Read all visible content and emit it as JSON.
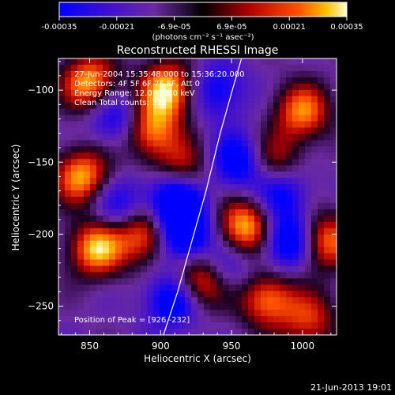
{
  "colorbar": {
    "ticks": [
      "-0.00035",
      "-0.00021",
      "-6.9e-05",
      "6.9e-05",
      "0.00021",
      "0.00035"
    ],
    "unit_label": "(photons cm⁻² s⁻¹ asec⁻²)",
    "range": [
      -0.00035,
      0.00035
    ]
  },
  "chart_data": {
    "type": "heatmap",
    "title": "Reconstructed RHESSI Image",
    "xlabel": "Heliocentric X (arcsec)",
    "ylabel": "Heliocentric Y (arcsec)",
    "xlim": [
      828,
      1024
    ],
    "ylim": [
      -270,
      -78
    ],
    "xticks": [
      850,
      900,
      950,
      1000
    ],
    "yticks": [
      -100,
      -150,
      -200,
      -250
    ],
    "xtick_labels": [
      "850",
      "900",
      "950",
      "1000"
    ],
    "ytick_labels": [
      "−100",
      "−150",
      "−200",
      "−250"
    ],
    "info_lines": [
      "27-Jun-2004 15:35:48.000 to 15:36:20.000",
      "Detectors: 4F 5F 6F 7F 8F, Att 0",
      "Energy Range: 12.0 - 25.0 keV",
      "Clean    Total counts: 318."
    ],
    "peak_label": "Position of Peak = [926,-232]",
    "peak": [
      926,
      -232
    ],
    "limb_curve": [
      [
        902,
        -270
      ],
      [
        912,
        -240
      ],
      [
        922,
        -205
      ],
      [
        932,
        -170
      ],
      [
        942,
        -130
      ],
      [
        952,
        -95
      ],
      [
        957,
        -78
      ]
    ],
    "blobs": [
      {
        "x": 850,
        "y": -95,
        "v": 0.9
      },
      {
        "x": 905,
        "y": -100,
        "v": 1.0
      },
      {
        "x": 892,
        "y": -128,
        "v": 0.85
      },
      {
        "x": 1000,
        "y": -115,
        "v": 0.8
      },
      {
        "x": 980,
        "y": -150,
        "v": 0.6
      },
      {
        "x": 845,
        "y": -160,
        "v": 0.9
      },
      {
        "x": 915,
        "y": -155,
        "v": 0.6
      },
      {
        "x": 890,
        "y": -200,
        "v": 0.9
      },
      {
        "x": 855,
        "y": -210,
        "v": 0.95
      },
      {
        "x": 960,
        "y": -195,
        "v": 1.0
      },
      {
        "x": 1015,
        "y": -205,
        "v": 0.85
      },
      {
        "x": 928,
        "y": -233,
        "v": 1.0
      },
      {
        "x": 975,
        "y": -245,
        "v": 0.8
      },
      {
        "x": 1005,
        "y": -260,
        "v": 0.6
      },
      {
        "x": 910,
        "y": -175,
        "v": -0.9
      },
      {
        "x": 915,
        "y": -200,
        "v": -1.0
      },
      {
        "x": 910,
        "y": -245,
        "v": -0.8
      },
      {
        "x": 990,
        "y": -205,
        "v": -0.85
      },
      {
        "x": 985,
        "y": -170,
        "v": -0.6
      },
      {
        "x": 955,
        "y": -150,
        "v": -0.7
      },
      {
        "x": 870,
        "y": -180,
        "v": -0.5
      },
      {
        "x": 945,
        "y": -225,
        "v": -0.5
      },
      {
        "x": 870,
        "y": -120,
        "v": -0.6
      },
      {
        "x": 940,
        "y": -100,
        "v": -0.55
      }
    ]
  },
  "footer": {
    "timestamp": "21-Jun-2013 19:01"
  }
}
